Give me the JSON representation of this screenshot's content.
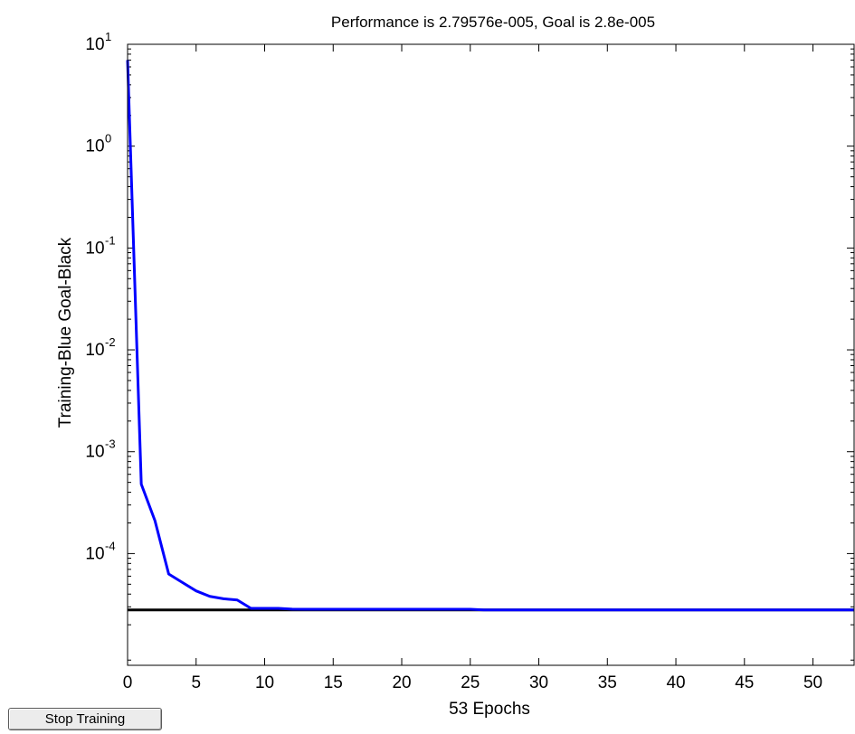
{
  "window": {
    "stop_button_label": "Stop Training"
  },
  "chart_data": {
    "type": "line",
    "title": "Performance is 2.79576e-005, Goal is 2.8e-005",
    "xlabel": "53 Epochs",
    "ylabel": "Training-Blue  Goal-Black",
    "x_scale": "linear",
    "y_scale": "log",
    "xlim": [
      0,
      53
    ],
    "ylim": [
      8e-06,
      10
    ],
    "x_ticks": [
      0,
      5,
      10,
      15,
      20,
      25,
      30,
      35,
      40,
      45,
      50
    ],
    "x_tick_labels": [
      "0",
      "5",
      "10",
      "15",
      "20",
      "25",
      "30",
      "35",
      "40",
      "45",
      "50"
    ],
    "y_ticks": [
      {
        "value": 10,
        "base": "10",
        "exp": "1"
      },
      {
        "value": 1,
        "base": "10",
        "exp": "0"
      },
      {
        "value": 0.1,
        "base": "10",
        "exp": "-1"
      },
      {
        "value": 0.01,
        "base": "10",
        "exp": "-2"
      },
      {
        "value": 0.001,
        "base": "10",
        "exp": "-3"
      },
      {
        "value": 0.0001,
        "base": "10",
        "exp": "-4"
      }
    ],
    "grid": false,
    "series": [
      {
        "color": "#0000ff",
        "x": [
          0,
          1,
          2,
          3,
          4,
          5,
          6,
          7,
          8,
          9,
          10,
          11,
          12,
          13,
          14,
          15,
          16,
          17,
          18,
          19,
          20,
          21,
          22,
          23,
          24,
          25,
          26,
          27,
          28,
          29,
          30,
          31,
          32,
          33,
          34,
          35,
          36,
          37,
          38,
          39,
          40,
          41,
          42,
          43,
          44,
          45,
          46,
          47,
          48,
          49,
          50,
          51,
          52,
          53
        ],
        "y": [
          7,
          0.00048,
          0.00021,
          6.3e-05,
          5.2e-05,
          4.3e-05,
          3.8e-05,
          3.6e-05,
          3.5e-05,
          2.9e-05,
          2.9e-05,
          2.9e-05,
          2.85e-05,
          2.84e-05,
          2.84e-05,
          2.84e-05,
          2.84e-05,
          2.84e-05,
          2.84e-05,
          2.84e-05,
          2.84e-05,
          2.84e-05,
          2.84e-05,
          2.84e-05,
          2.84e-05,
          2.84e-05,
          2.8e-05,
          2.8e-05,
          2.8e-05,
          2.8e-05,
          2.8e-05,
          2.8e-05,
          2.8e-05,
          2.8e-05,
          2.8e-05,
          2.8e-05,
          2.8e-05,
          2.8e-05,
          2.8e-05,
          2.8e-05,
          2.8e-05,
          2.8e-05,
          2.8e-05,
          2.8e-05,
          2.8e-05,
          2.8e-05,
          2.8e-05,
          2.8e-05,
          2.8e-05,
          2.8e-05,
          2.8e-05,
          2.8e-05,
          2.8e-05,
          2.79576e-05
        ]
      },
      {
        "color": "#000000",
        "x": [
          0,
          53
        ],
        "y": [
          2.8e-05,
          2.8e-05
        ]
      }
    ]
  }
}
